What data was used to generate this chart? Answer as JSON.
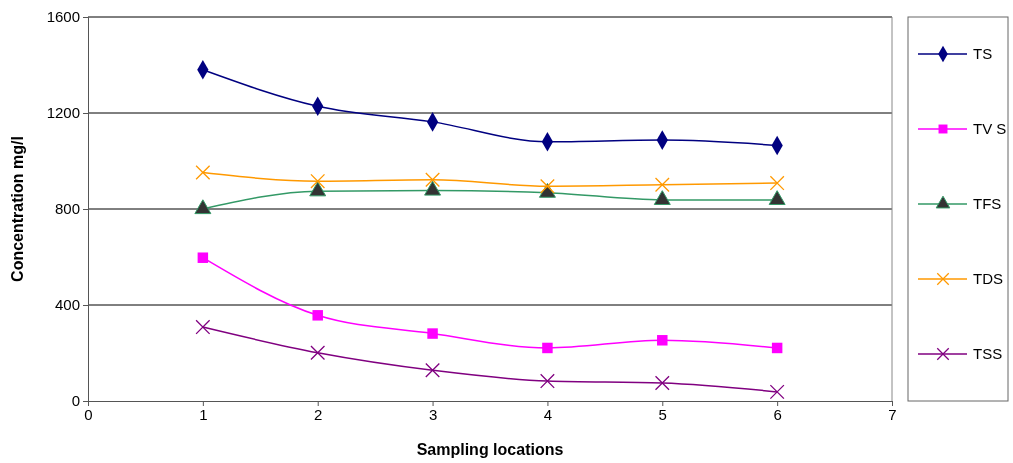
{
  "chart_data": {
    "type": "line",
    "xlabel": "Sampling locations",
    "ylabel": "Concentration mg/l",
    "x": [
      1,
      2,
      3,
      4,
      5,
      6
    ],
    "xlim": [
      0,
      7
    ],
    "xticks": [
      0,
      1,
      2,
      3,
      4,
      5,
      6,
      7
    ],
    "ylim": [
      0,
      1600
    ],
    "yticks": [
      0,
      400,
      800,
      1200,
      1600
    ],
    "grid": "y",
    "legend": "right",
    "series": [
      {
        "name": "TS",
        "color": "#000080",
        "marker": "diamond",
        "values": [
          1380,
          1228,
          1163,
          1080,
          1087,
          1065
        ]
      },
      {
        "name": "TV S",
        "color": "#ff00ff",
        "marker": "square",
        "values": [
          597,
          357,
          281,
          221,
          253,
          221
        ]
      },
      {
        "name": "TFS",
        "color": "#339966",
        "marker": "triangle",
        "values": [
          800,
          874,
          877,
          868,
          838,
          838
        ]
      },
      {
        "name": "TDS",
        "color": "#ff9900",
        "marker": "cross",
        "values": [
          952,
          916,
          922,
          895,
          901,
          908
        ]
      },
      {
        "name": "TSS",
        "color": "#800080",
        "marker": "cross",
        "values": [
          308,
          201,
          128,
          83,
          75,
          38
        ]
      }
    ]
  }
}
